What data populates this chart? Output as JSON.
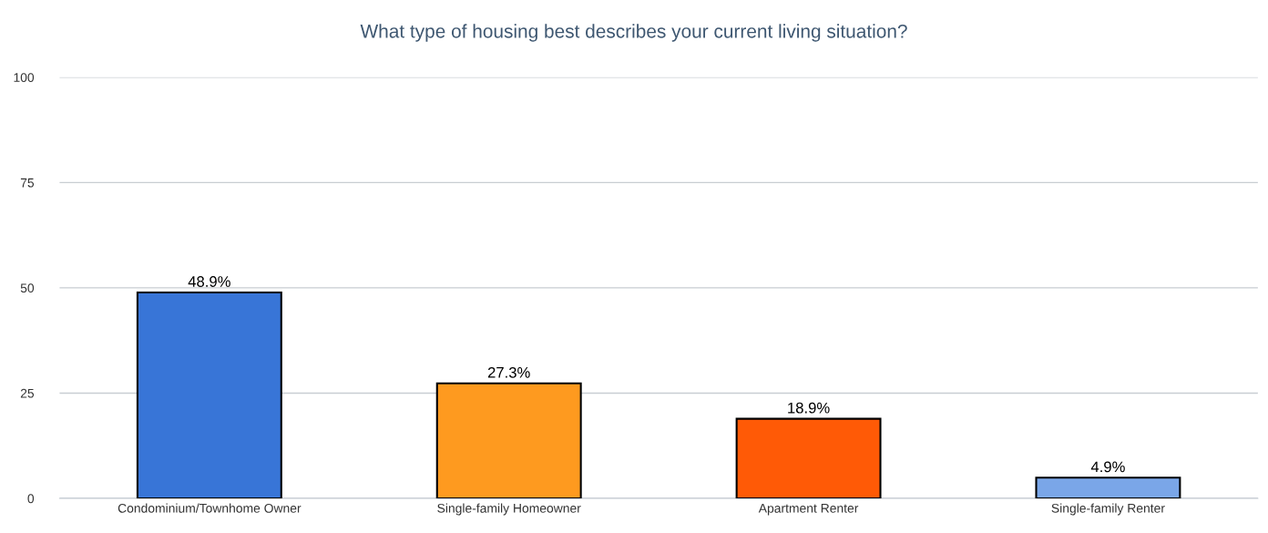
{
  "chart_data": {
    "type": "bar",
    "title": "What type of housing best describes your current living situation?",
    "categories": [
      "Condominium/Townhome Owner",
      "Single-family Homeowner",
      "Apartment Renter",
      "Single-family Renter"
    ],
    "values": [
      48.9,
      27.3,
      18.9,
      4.9
    ],
    "colors": [
      "#3875d7",
      "#fe9a1f",
      "#ff5a06",
      "#7aa6e8"
    ],
    "value_labels": [
      "48.9%",
      "27.3%",
      "18.9%",
      "4.9%"
    ],
    "ylim": [
      0,
      100
    ],
    "yticks": [
      0,
      25,
      50,
      75,
      100
    ],
    "grid": "y"
  }
}
